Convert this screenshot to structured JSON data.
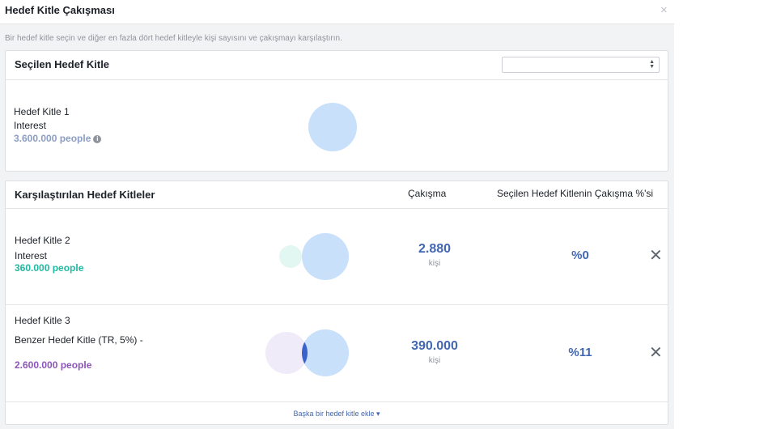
{
  "dialog": {
    "title": "Hedef Kitle Çakışması",
    "close": "×",
    "subtitle": "Bir hedef kitle seçin ve diğer en fazla dört hedef kitleyle kişi sayısını ve çakışmayı karşılaştırın."
  },
  "selected": {
    "title": "Seçilen Hedef Kitle",
    "select_value": "",
    "audience": {
      "name": "Hedef Kitle 1",
      "type": "Interest",
      "count": "3.600.000 people",
      "count_color": "#8b9dc3"
    }
  },
  "compared": {
    "title": "Karşılaştırılan Hedef Kitleler",
    "col_overlap": "Çakışma",
    "col_percent": "Seçilen Hedef Kitlenin Çakışma %'si",
    "rows": [
      {
        "name": "Hedef Kitle 2",
        "type": "Interest",
        "count": "360.000 people",
        "count_color": "#1fb8a1",
        "overlap": "2.880",
        "unit": "kişi",
        "percent": "%0",
        "remove": "✕",
        "small_fill": "#e2f6f2"
      },
      {
        "name": "Hedef Kitle 3",
        "type": "Benzer Hedef Kitle (TR, 5%) -",
        "count": "2.600.000 people",
        "count_color": "#8c55b8",
        "overlap": "390.000",
        "unit": "kişi",
        "percent": "%11",
        "remove": "✕",
        "small_fill": "#efebf8"
      }
    ],
    "add_link": "Başka bir hedef kitle ekle ▾"
  },
  "colors": {
    "main_circle": "#c9e0fb",
    "intersection": "#3b62c8",
    "accent": "#4267b2"
  }
}
